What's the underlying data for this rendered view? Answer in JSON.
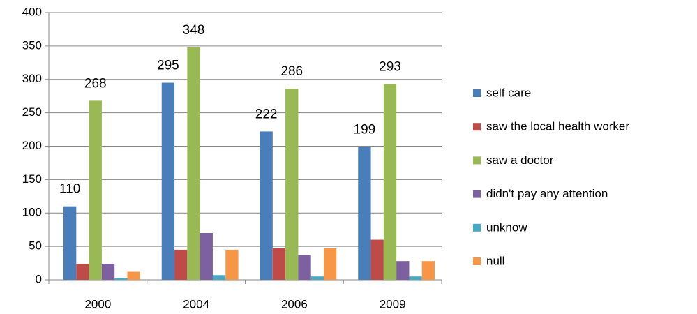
{
  "chart_data": {
    "type": "bar",
    "categories": [
      "2000",
      "2004",
      "2006",
      "2009"
    ],
    "series": [
      {
        "name": "self care",
        "color": "#4a7ebb",
        "values": [
          110,
          295,
          222,
          199
        ],
        "show_labels": true
      },
      {
        "name": "saw the local health worker",
        "color": "#be4b48",
        "values": [
          24,
          45,
          47,
          60
        ],
        "show_labels": false
      },
      {
        "name": "saw a doctor",
        "color": "#98b954",
        "values": [
          268,
          348,
          286,
          293
        ],
        "show_labels": true
      },
      {
        "name": "didn't pay any attention",
        "color": "#7d60a0",
        "values": [
          24,
          70,
          37,
          28
        ],
        "show_labels": false
      },
      {
        "name": "unknow",
        "color": "#46aac5",
        "values": [
          3,
          7,
          5,
          5
        ],
        "show_labels": false
      },
      {
        "name": "null",
        "color": "#f79646",
        "values": [
          12,
          45,
          47,
          28
        ],
        "show_labels": false
      }
    ],
    "ylim": [
      0,
      400
    ],
    "yticks": [
      0,
      50,
      100,
      150,
      200,
      250,
      300,
      350,
      400
    ],
    "grid": true,
    "legend": "right"
  }
}
